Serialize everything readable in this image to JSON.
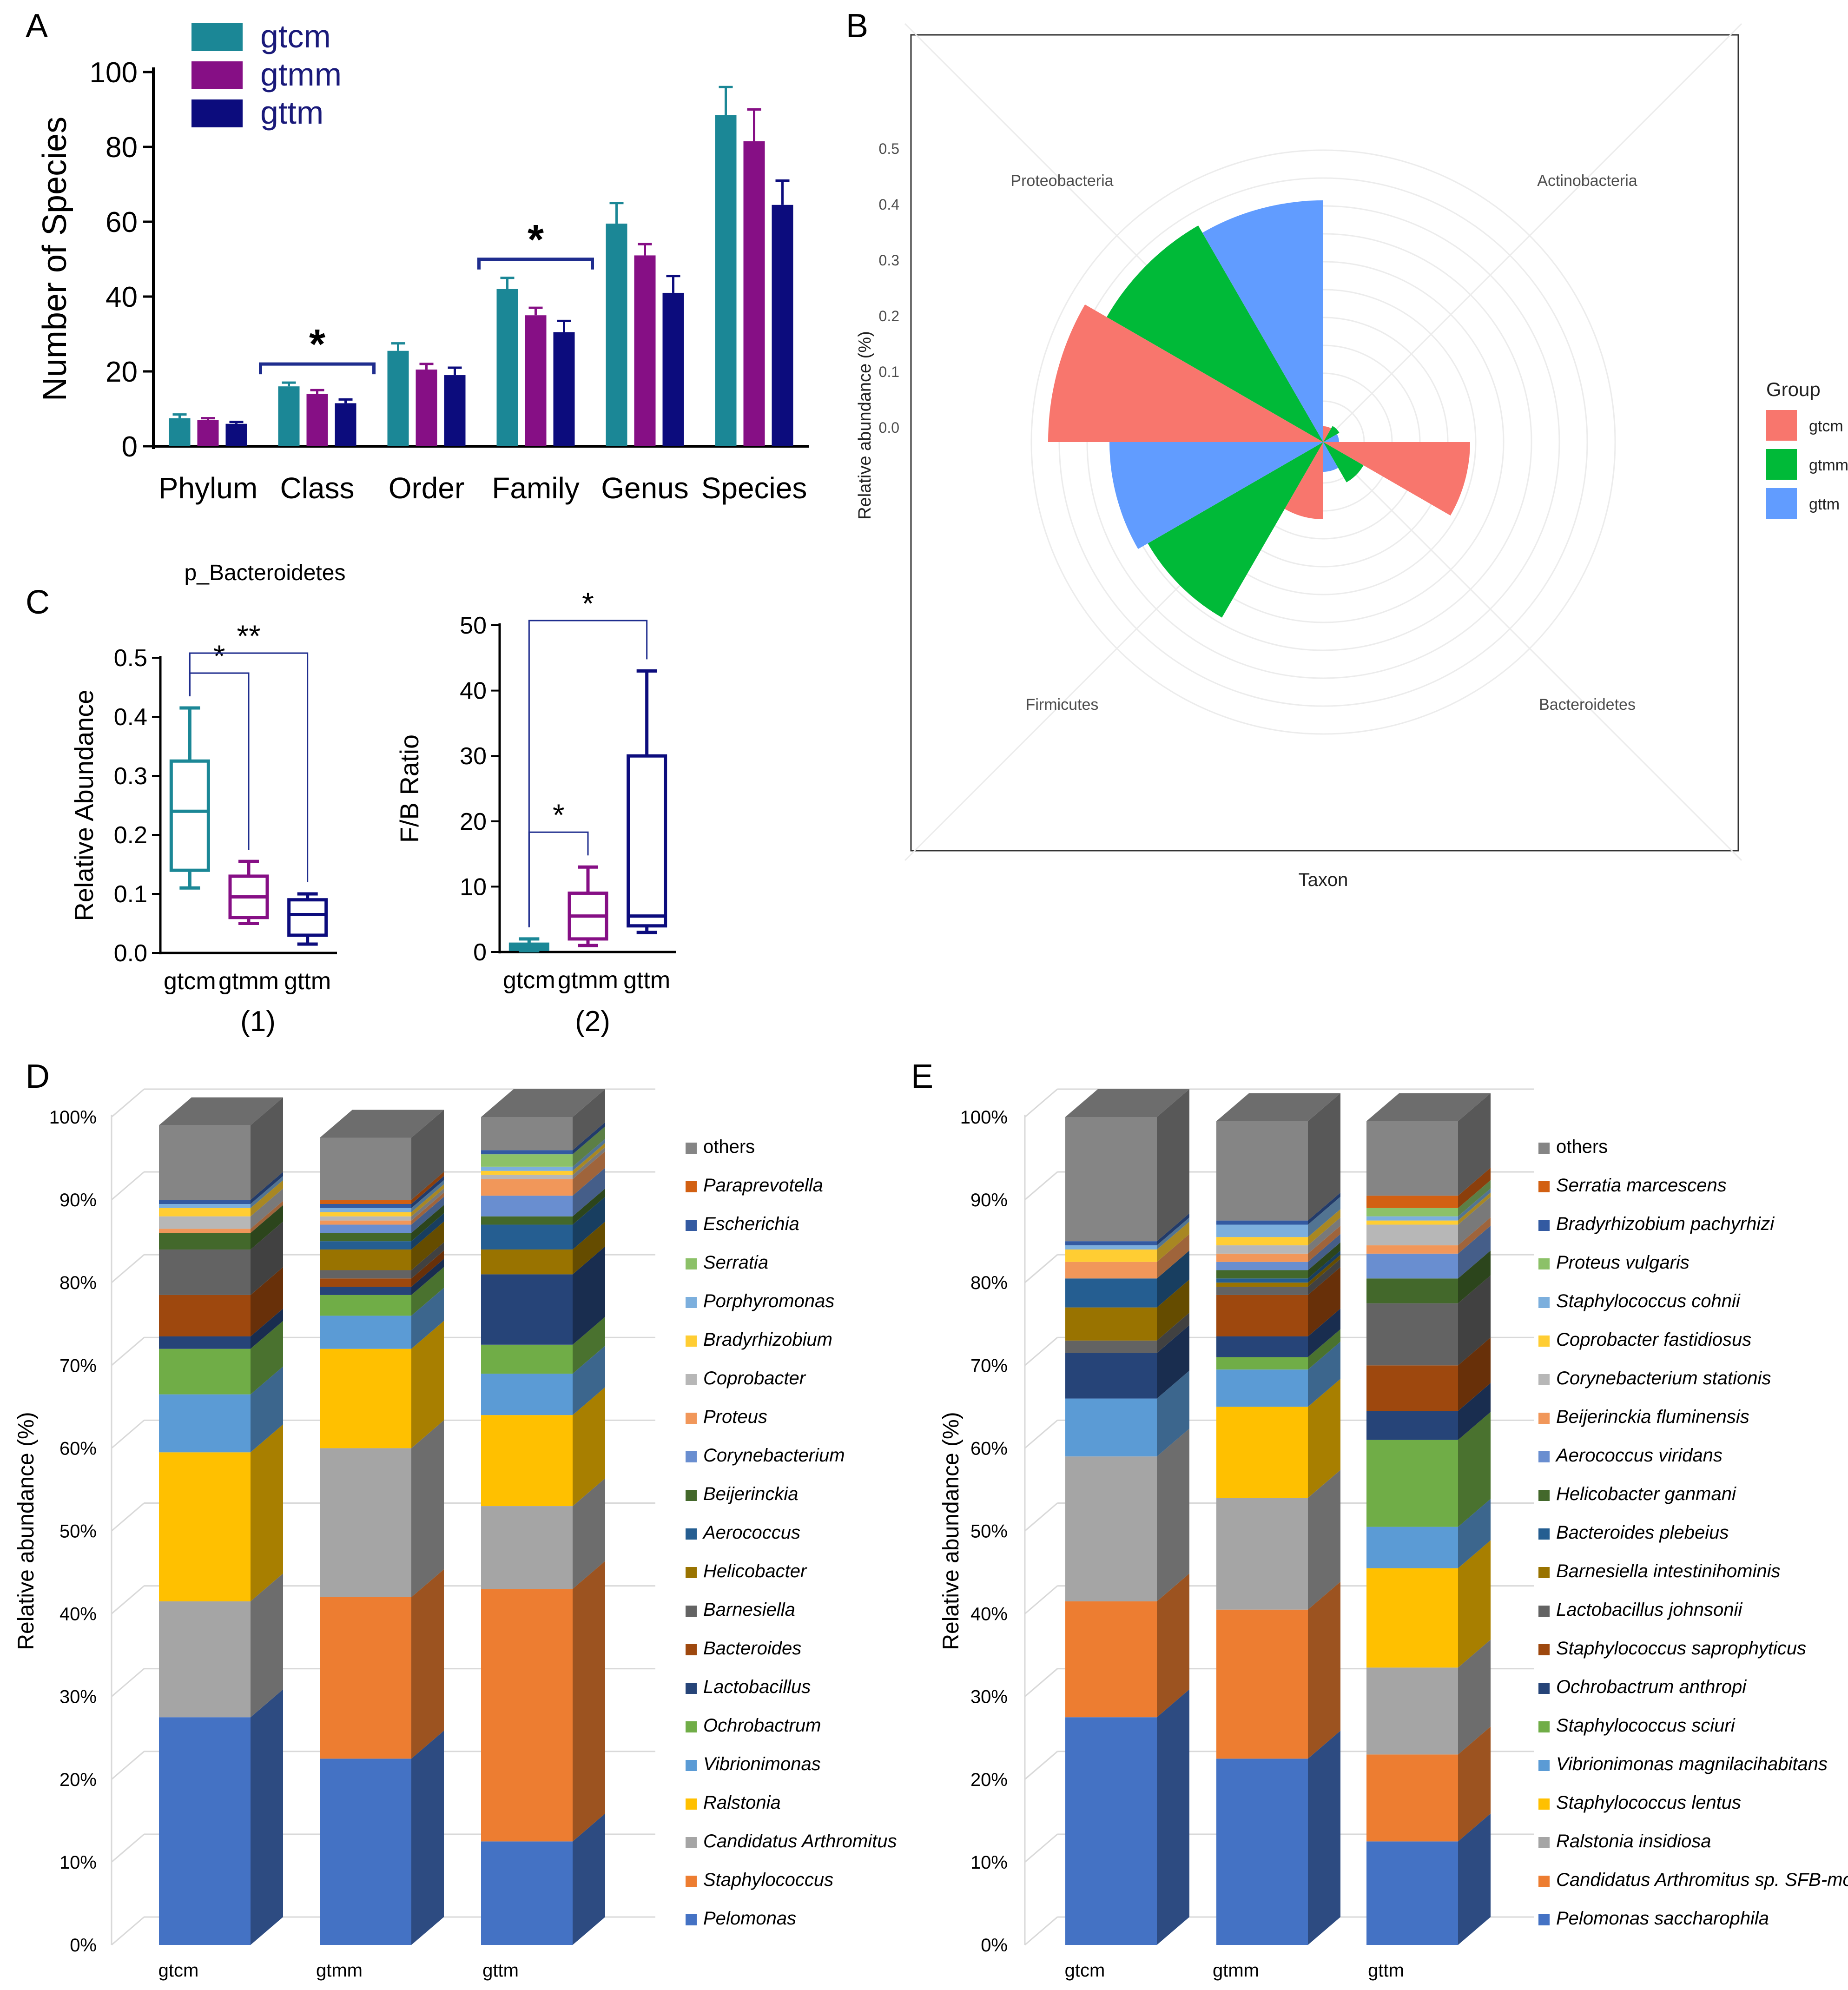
{
  "colors": {
    "gtcm": "#1b8796",
    "gtmm": "#860f85",
    "gttm": "#0c0c7d",
    "polar_gtcm": "#f8766d",
    "polar_gtmm": "#00ba38",
    "polar_gttm": "#619cff",
    "bracket": "#1f2d8e"
  },
  "chart_data": [
    {
      "panel": "A",
      "type": "bar",
      "categories": [
        "Phylum",
        "Class",
        "Order",
        "Family",
        "Genus",
        "Species"
      ],
      "series": [
        {
          "name": "gtcm",
          "values": [
            7.5,
            16,
            25.5,
            42,
            59.5,
            88.5
          ],
          "errors": [
            1,
            1,
            2,
            3,
            5.5,
            7.5
          ]
        },
        {
          "name": "gtmm",
          "values": [
            7,
            14,
            20.5,
            35,
            51,
            81.5
          ],
          "errors": [
            0.5,
            1,
            1.5,
            2,
            3,
            8.5
          ]
        },
        {
          "name": "gttm",
          "values": [
            6,
            11.5,
            19,
            30.5,
            41,
            64.5
          ],
          "errors": [
            0.5,
            1,
            2,
            3,
            4.5,
            6.5
          ]
        }
      ],
      "ylabel": "Number of Species",
      "ylim": [
        0,
        100
      ],
      "yticks": [
        0,
        20,
        40,
        60,
        80,
        100
      ],
      "significance": [
        {
          "category": "Class",
          "label": "*"
        },
        {
          "category": "Family",
          "label": "*"
        }
      ]
    },
    {
      "panel": "B",
      "type": "polar_bar",
      "categories": [
        "Proteobacteria",
        "Actinobacteria",
        "Bacteroidetes",
        "Firmicutes"
      ],
      "series": [
        {
          "name": "gtcm",
          "values": [
            0.47,
            0.005,
            0.24,
            0.115
          ]
        },
        {
          "name": "gtmm",
          "values": [
            0.425,
            0.01,
            0.06,
            0.34
          ]
        },
        {
          "name": "gttm",
          "values": [
            0.41,
            0.005,
            0.03,
            0.36
          ]
        }
      ],
      "ylabel": "Relative abundance (%)",
      "xlabel": "Taxon",
      "radial_ticks": [
        "0.0",
        "0.1",
        "0.2",
        "0.3",
        "0.4",
        "0.5"
      ],
      "legend_title": "Group",
      "legend": [
        "gtcm",
        "gtmm",
        "gttm"
      ]
    },
    {
      "panel": "C1",
      "type": "box",
      "title": "p_Bacteroidetes",
      "caption": "(1)",
      "categories": [
        "gtcm",
        "gtmm",
        "gttm"
      ],
      "boxes": [
        {
          "min": 0.11,
          "q1": 0.14,
          "median": 0.24,
          "q3": 0.325,
          "max": 0.415
        },
        {
          "min": 0.05,
          "q1": 0.06,
          "median": 0.095,
          "q3": 0.13,
          "max": 0.155
        },
        {
          "min": 0.015,
          "q1": 0.03,
          "median": 0.065,
          "q3": 0.09,
          "max": 0.1
        }
      ],
      "ylabel": "Relative Abundance",
      "ylim": [
        0,
        0.5
      ],
      "yticks": [
        "0.0",
        "0.1",
        "0.2",
        "0.3",
        "0.4",
        "0.5"
      ],
      "significance": [
        {
          "from": "gtcm",
          "to": "gtmm",
          "label": "*"
        },
        {
          "from": "gtcm",
          "to": "gttm",
          "label": "**"
        }
      ]
    },
    {
      "panel": "C2",
      "type": "box",
      "caption": "(2)",
      "categories": [
        "gtcm",
        "gtmm",
        "gttm"
      ],
      "boxes": [
        {
          "min": 0.2,
          "q1": 0.4,
          "median": 0.8,
          "q3": 1.2,
          "max": 2
        },
        {
          "min": 1,
          "q1": 2,
          "median": 5.5,
          "q3": 9,
          "max": 13
        },
        {
          "min": 3,
          "q1": 4,
          "median": 5.5,
          "q3": 30,
          "max": 43
        }
      ],
      "ylabel": "F/B Ratio",
      "ylim": [
        0,
        50
      ],
      "yticks": [
        "0",
        "10",
        "20",
        "30",
        "40",
        "50"
      ],
      "significance": [
        {
          "from": "gtcm",
          "to": "gtmm",
          "label": "*"
        },
        {
          "from": "gtcm",
          "to": "gttm",
          "label": "*"
        }
      ]
    },
    {
      "panel": "D",
      "type": "stacked_bar_3d",
      "groups": [
        "gtcm",
        "gtmm",
        "gttm"
      ],
      "ylabel": "Relative abundance (%)",
      "yticks": [
        "0%",
        "10%",
        "20%",
        "30%",
        "40%",
        "50%",
        "60%",
        "70%",
        "80%",
        "90%",
        "100%"
      ],
      "series": [
        {
          "name": "Pelomonas",
          "color": "#4472c4",
          "values": [
            27.5,
            22.5,
            12.5
          ]
        },
        {
          "name": "Staphylococcus",
          "color": "#ed7d31",
          "values": [
            0,
            19.5,
            30.5
          ]
        },
        {
          "name": "Candidatus Arthromitus",
          "color": "#a5a5a5",
          "values": [
            14,
            18,
            10
          ]
        },
        {
          "name": "Ralstonia",
          "color": "#ffc000",
          "values": [
            18,
            12,
            11
          ]
        },
        {
          "name": "Vibrionimonas",
          "color": "#5b9bd5",
          "values": [
            7,
            4,
            5
          ]
        },
        {
          "name": "Ochrobactrum",
          "color": "#70ad47",
          "values": [
            5.5,
            2.5,
            3.5
          ]
        },
        {
          "name": "Lactobacillus",
          "color": "#264478",
          "values": [
            1.5,
            1,
            8.5
          ]
        },
        {
          "name": "Bacteroides",
          "color": "#9e480e",
          "values": [
            5,
            1,
            0
          ]
        },
        {
          "name": "Barnesiella",
          "color": "#636363",
          "values": [
            5.5,
            1,
            0
          ]
        },
        {
          "name": "Helicobacter",
          "color": "#997300",
          "values": [
            0,
            2.5,
            3
          ]
        },
        {
          "name": "Aerococcus",
          "color": "#255e91",
          "values": [
            0,
            1,
            3
          ]
        },
        {
          "name": "Beijerinckia",
          "color": "#43682b",
          "values": [
            2,
            1,
            1
          ]
        },
        {
          "name": "Corynebacterium",
          "color": "#698ed0",
          "values": [
            0,
            1,
            2.5
          ]
        },
        {
          "name": "Proteus",
          "color": "#f1975a",
          "values": [
            0.5,
            0.5,
            2
          ]
        },
        {
          "name": "Coprobacter",
          "color": "#b7b7b7",
          "values": [
            1.5,
            0.5,
            0.5
          ]
        },
        {
          "name": "Bradyrhizobium",
          "color": "#ffcd33",
          "values": [
            1,
            0.5,
            0.5
          ]
        },
        {
          "name": "Porphyromonas",
          "color": "#7cafdd",
          "values": [
            0.5,
            0.5,
            0.5
          ]
        },
        {
          "name": "Serratia",
          "color": "#8cc168",
          "values": [
            0,
            0,
            1.5
          ]
        },
        {
          "name": "Escherichia",
          "color": "#335aa1",
          "values": [
            0.5,
            0.5,
            0.5
          ]
        },
        {
          "name": "Paraprevotella",
          "color": "#d26012",
          "values": [
            0,
            0.5,
            0
          ]
        },
        {
          "name": "others",
          "color": "#858585",
          "values": [
            9,
            7.5,
            4
          ]
        }
      ]
    },
    {
      "panel": "E",
      "type": "stacked_bar_3d",
      "groups": [
        "gtcm",
        "gtmm",
        "gttm"
      ],
      "ylabel": "Relative abundance (%)",
      "yticks": [
        "0%",
        "10%",
        "20%",
        "30%",
        "40%",
        "50%",
        "60%",
        "70%",
        "80%",
        "90%",
        "100%"
      ],
      "series": [
        {
          "name": "Pelomonas saccharophila",
          "color": "#4472c4",
          "values": [
            27.5,
            22.5,
            12.5
          ]
        },
        {
          "name": "Candidatus Arthromitus sp. SFB-mouse",
          "color": "#ed7d31",
          "values": [
            14,
            18,
            10.5
          ]
        },
        {
          "name": "Ralstonia insidiosa",
          "color": "#a5a5a5",
          "values": [
            17.5,
            13.5,
            10.5
          ]
        },
        {
          "name": "Staphylococcus lentus",
          "color": "#ffc000",
          "values": [
            0,
            11,
            12
          ]
        },
        {
          "name": "Vibrionimonas magnilacihabitans",
          "color": "#5b9bd5",
          "values": [
            7,
            4.5,
            5
          ]
        },
        {
          "name": "Staphylococcus sciuri",
          "color": "#70ad47",
          "values": [
            0,
            1.5,
            10.5
          ]
        },
        {
          "name": "Ochrobactrum anthropi",
          "color": "#264478",
          "values": [
            5.5,
            2.5,
            3.5
          ]
        },
        {
          "name": "Staphylococcus saprophyticus",
          "color": "#9e480e",
          "values": [
            0,
            5,
            5.5
          ]
        },
        {
          "name": "Lactobacillus johnsonii",
          "color": "#636363",
          "values": [
            1.5,
            1,
            7.5
          ]
        },
        {
          "name": "Barnesiella intestinihominis",
          "color": "#997300",
          "values": [
            4,
            0.5,
            0
          ]
        },
        {
          "name": "Bacteroides plebeius",
          "color": "#255e91",
          "values": [
            3.5,
            0.5,
            0
          ]
        },
        {
          "name": "Helicobacter ganmani",
          "color": "#43682b",
          "values": [
            0,
            1,
            3
          ]
        },
        {
          "name": "Aerococcus viridans",
          "color": "#698ed0",
          "values": [
            0,
            1,
            3
          ]
        },
        {
          "name": "Beijerinckia fluminensis",
          "color": "#f1975a",
          "values": [
            2,
            1,
            1
          ]
        },
        {
          "name": "Corynebacterium stationis",
          "color": "#b7b7b7",
          "values": [
            0,
            1,
            2.5
          ]
        },
        {
          "name": "Coprobacter fastidiosus",
          "color": "#ffcd33",
          "values": [
            1.5,
            1,
            0.5
          ]
        },
        {
          "name": "Staphylococcus cohnii",
          "color": "#7cafdd",
          "values": [
            0.5,
            1.5,
            0.5
          ]
        },
        {
          "name": "Proteus vulgaris",
          "color": "#8cc168",
          "values": [
            0,
            0,
            1
          ]
        },
        {
          "name": "Bradyrhizobium pachyrhizi",
          "color": "#335aa1",
          "values": [
            0.5,
            0.5,
            0
          ]
        },
        {
          "name": "Serratia marcescens",
          "color": "#d26012",
          "values": [
            0,
            0,
            1.5
          ]
        },
        {
          "name": "others",
          "color": "#858585",
          "values": [
            15,
            12,
            9
          ]
        }
      ]
    }
  ],
  "panel_labels": {
    "a": "A",
    "b": "B",
    "c": "C",
    "d": "D",
    "e": "E"
  }
}
